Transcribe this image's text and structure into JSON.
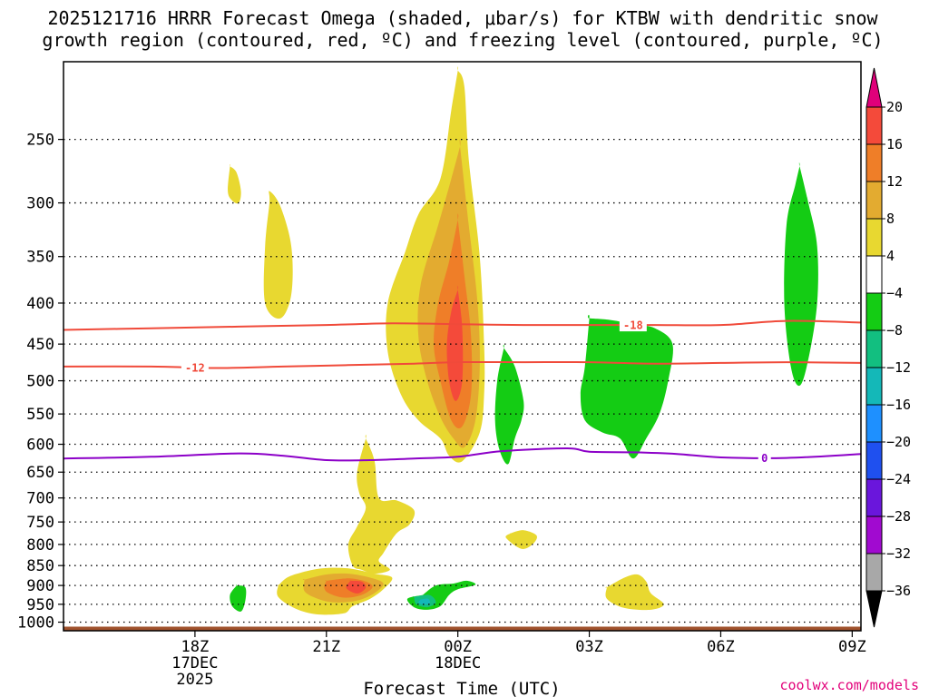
{
  "chart_data": {
    "type": "heatmap",
    "title_lines": [
      "2025121716 HRRR Forecast Omega (shaded, μbar/s) for KTBW with dendritic snow",
      "growth region (contoured, red, ºC) and freezing level (contoured, purple, ºC)"
    ],
    "xlabel": "Forecast Time (UTC)",
    "credit": "coolwx.com/models",
    "x_range_hours": [
      -3.0,
      15.2
    ],
    "y_range_hpa": [
      1025,
      200
    ],
    "y_ticks": [
      250,
      300,
      350,
      400,
      450,
      500,
      550,
      600,
      650,
      700,
      750,
      800,
      850,
      900,
      950,
      1000
    ],
    "x_ticks": [
      {
        "hour": 0,
        "lines": [
          "18Z",
          "17DEC",
          "2025"
        ]
      },
      {
        "hour": 3,
        "lines": [
          "21Z"
        ]
      },
      {
        "hour": 6,
        "lines": [
          "00Z",
          "18DEC"
        ]
      },
      {
        "hour": 9,
        "lines": [
          "03Z"
        ]
      },
      {
        "hour": 12,
        "lines": [
          "06Z"
        ]
      },
      {
        "hour": 15,
        "lines": [
          "09Z"
        ]
      }
    ],
    "ground_hpa": 1013,
    "colorbar": {
      "levels": [
        20,
        16,
        12,
        8,
        4,
        -4,
        -8,
        -12,
        -16,
        -20,
        -24,
        -28,
        -32,
        -36
      ],
      "colors": [
        "#ff2d55",
        "#f44a3a",
        "#ef7e28",
        "#e3ab30",
        "#e8d830",
        "#ffffff",
        "#14cc14",
        "#12bf80",
        "#14b8b8",
        "#1e90ff",
        "#1f50ef",
        "#6a16dc",
        "#a10ad0",
        "#a8a8a8",
        "#000000"
      ],
      "top_arrow_color": "#e0007a",
      "bottom_arrow_color": "#000000"
    },
    "contours": [
      {
        "name": "dendritic-minus18",
        "color": "#f04a3a",
        "label": "-18",
        "label_hour": 10.0,
        "points": [
          [
            -3.0,
            432
          ],
          [
            -1.0,
            430
          ],
          [
            1.0,
            428
          ],
          [
            3.0,
            426
          ],
          [
            4.5,
            424
          ],
          [
            6.0,
            425
          ],
          [
            7.5,
            426
          ],
          [
            9.0,
            426
          ],
          [
            10.5,
            426
          ],
          [
            12.0,
            426
          ],
          [
            13.5,
            421
          ],
          [
            15.2,
            423
          ]
        ]
      },
      {
        "name": "dendritic-minus12",
        "color": "#f04a3a",
        "label": "-12",
        "label_hour": 0.0,
        "points": [
          [
            -3.0,
            480
          ],
          [
            -1.0,
            480
          ],
          [
            0.5,
            482
          ],
          [
            2.0,
            480
          ],
          [
            3.5,
            478
          ],
          [
            5.0,
            476
          ],
          [
            6.0,
            474
          ],
          [
            7.5,
            474
          ],
          [
            9.0,
            474
          ],
          [
            10.5,
            476
          ],
          [
            12.0,
            475
          ],
          [
            13.5,
            474
          ],
          [
            15.2,
            475
          ]
        ]
      },
      {
        "name": "freezing-level-0",
        "color": "#8c00c8",
        "label": "0",
        "label_hour": 13.0,
        "points": [
          [
            -3.0,
            625
          ],
          [
            -1.0,
            622
          ],
          [
            1.0,
            616
          ],
          [
            2.0,
            620
          ],
          [
            3.0,
            628
          ],
          [
            4.0,
            628
          ],
          [
            5.0,
            625
          ],
          [
            6.0,
            622
          ],
          [
            7.0,
            612
          ],
          [
            8.5,
            607
          ],
          [
            9.0,
            613
          ],
          [
            10.0,
            614
          ],
          [
            11.0,
            617
          ],
          [
            12.0,
            623
          ],
          [
            13.5,
            624
          ],
          [
            15.2,
            617
          ]
        ]
      }
    ],
    "shaded_regions": [
      {
        "name": "omega-4-left-upper",
        "color": "#e8d830",
        "points": [
          [
            1.7,
            290
          ],
          [
            1.95,
            303
          ],
          [
            2.2,
            340
          ],
          [
            2.2,
            390
          ],
          [
            1.95,
            418
          ],
          [
            1.6,
            400
          ],
          [
            1.6,
            340
          ],
          [
            1.7,
            300
          ]
        ]
      },
      {
        "name": "omega-4-main",
        "color": "#e8d830",
        "points": [
          [
            6.0,
            205
          ],
          [
            6.15,
            215
          ],
          [
            6.25,
            265
          ],
          [
            6.5,
            350
          ],
          [
            6.6,
            450
          ],
          [
            6.6,
            520
          ],
          [
            6.5,
            580
          ],
          [
            6.1,
            630
          ],
          [
            5.8,
            620
          ],
          [
            5.6,
            590
          ],
          [
            5.1,
            560
          ],
          [
            4.7,
            520
          ],
          [
            4.4,
            460
          ],
          [
            4.4,
            400
          ],
          [
            4.8,
            345
          ],
          [
            5.1,
            310
          ],
          [
            5.6,
            280
          ],
          [
            5.85,
            230
          ],
          [
            6.0,
            205
          ]
        ]
      },
      {
        "name": "omega-8-main",
        "color": "#e3ab30",
        "points": [
          [
            6.05,
            255
          ],
          [
            6.25,
            320
          ],
          [
            6.45,
            400
          ],
          [
            6.5,
            480
          ],
          [
            6.4,
            560
          ],
          [
            6.15,
            605
          ],
          [
            5.9,
            590
          ],
          [
            5.6,
            555
          ],
          [
            5.3,
            500
          ],
          [
            5.1,
            440
          ],
          [
            5.15,
            380
          ],
          [
            5.55,
            320
          ],
          [
            5.85,
            280
          ],
          [
            6.05,
            255
          ]
        ]
      },
      {
        "name": "omega-12-main",
        "color": "#ef7e28",
        "points": [
          [
            6.0,
            315
          ],
          [
            6.15,
            370
          ],
          [
            6.3,
            440
          ],
          [
            6.3,
            520
          ],
          [
            6.1,
            570
          ],
          [
            5.85,
            560
          ],
          [
            5.6,
            500
          ],
          [
            5.45,
            450
          ],
          [
            5.55,
            400
          ],
          [
            5.8,
            355
          ],
          [
            6.0,
            315
          ]
        ]
      },
      {
        "name": "omega-16-main",
        "color": "#f44a3a",
        "points": [
          [
            6.0,
            385
          ],
          [
            6.1,
            430
          ],
          [
            6.1,
            500
          ],
          [
            5.95,
            530
          ],
          [
            5.8,
            500
          ],
          [
            5.75,
            450
          ],
          [
            5.85,
            410
          ],
          [
            6.0,
            385
          ]
        ]
      },
      {
        "name": "omega-4-mid-chain",
        "color": "#e8d830",
        "points": [
          [
            3.9,
            590
          ],
          [
            4.1,
            630
          ],
          [
            4.2,
            700
          ],
          [
            4.6,
            705
          ],
          [
            5.0,
            725
          ],
          [
            4.9,
            755
          ],
          [
            4.6,
            775
          ],
          [
            4.3,
            820
          ],
          [
            4.2,
            840
          ],
          [
            4.45,
            860
          ],
          [
            4.1,
            870
          ],
          [
            3.8,
            860
          ],
          [
            3.6,
            850
          ],
          [
            3.5,
            800
          ],
          [
            3.7,
            760
          ],
          [
            3.9,
            720
          ],
          [
            3.75,
            690
          ],
          [
            3.7,
            650
          ],
          [
            3.9,
            590
          ]
        ]
      },
      {
        "name": "omega-4-low-blob",
        "color": "#e8d830",
        "points": [
          [
            1.9,
            900
          ],
          [
            2.1,
            880
          ],
          [
            2.4,
            868
          ],
          [
            2.9,
            857
          ],
          [
            3.5,
            857
          ],
          [
            4.1,
            870
          ],
          [
            4.5,
            880
          ],
          [
            4.3,
            910
          ],
          [
            4.0,
            935
          ],
          [
            3.6,
            955
          ],
          [
            3.4,
            975
          ],
          [
            2.8,
            978
          ],
          [
            2.3,
            962
          ],
          [
            1.9,
            930
          ],
          [
            1.9,
            900
          ]
        ]
      },
      {
        "name": "omega-8-low-blob",
        "color": "#e3ab30",
        "points": [
          [
            2.5,
            885
          ],
          [
            3.0,
            872
          ],
          [
            3.5,
            870
          ],
          [
            4.0,
            880
          ],
          [
            4.3,
            895
          ],
          [
            4.1,
            920
          ],
          [
            3.7,
            940
          ],
          [
            3.2,
            945
          ],
          [
            2.8,
            935
          ],
          [
            2.5,
            915
          ],
          [
            2.5,
            885
          ]
        ]
      },
      {
        "name": "omega-12-low-blob",
        "color": "#ef7e28",
        "points": [
          [
            3.0,
            888
          ],
          [
            3.5,
            882
          ],
          [
            3.9,
            890
          ],
          [
            4.05,
            905
          ],
          [
            3.8,
            925
          ],
          [
            3.4,
            932
          ],
          [
            3.05,
            920
          ],
          [
            2.95,
            905
          ],
          [
            3.0,
            888
          ]
        ]
      },
      {
        "name": "omega-16-low-blob",
        "color": "#f44a3a",
        "points": [
          [
            3.55,
            888
          ],
          [
            3.8,
            890
          ],
          [
            3.9,
            905
          ],
          [
            3.75,
            920
          ],
          [
            3.6,
            918
          ],
          [
            3.45,
            905
          ],
          [
            3.55,
            888
          ]
        ]
      },
      {
        "name": "omega-4-small-upper",
        "color": "#e8d830",
        "points": [
          [
            0.8,
            270
          ],
          [
            0.95,
            275
          ],
          [
            1.05,
            290
          ],
          [
            1.0,
            300
          ],
          [
            0.85,
            298
          ],
          [
            0.75,
            290
          ],
          [
            0.8,
            270
          ]
        ]
      },
      {
        "name": "omega-4-mid-small",
        "color": "#e8d830",
        "points": [
          [
            7.2,
            775
          ],
          [
            7.5,
            768
          ],
          [
            7.8,
            780
          ],
          [
            7.7,
            800
          ],
          [
            7.45,
            810
          ],
          [
            7.1,
            785
          ],
          [
            7.2,
            775
          ]
        ]
      },
      {
        "name": "omega-4-right-low",
        "color": "#e8d830",
        "points": [
          [
            9.4,
            905
          ],
          [
            9.8,
            880
          ],
          [
            10.1,
            872
          ],
          [
            10.3,
            890
          ],
          [
            10.4,
            920
          ],
          [
            10.7,
            950
          ],
          [
            10.4,
            965
          ],
          [
            9.8,
            960
          ],
          [
            9.4,
            935
          ],
          [
            9.4,
            905
          ]
        ]
      },
      {
        "name": "omega-minus4-right-tall",
        "color": "#14cc14",
        "points": [
          [
            13.8,
            270
          ],
          [
            14.0,
            300
          ],
          [
            14.2,
            340
          ],
          [
            14.2,
            400
          ],
          [
            14.0,
            470
          ],
          [
            13.8,
            507
          ],
          [
            13.6,
            480
          ],
          [
            13.45,
            400
          ],
          [
            13.5,
            320
          ],
          [
            13.7,
            285
          ],
          [
            13.8,
            270
          ]
        ]
      },
      {
        "name": "omega-minus4-mid-rect",
        "color": "#14cc14",
        "points": [
          [
            9.0,
            418
          ],
          [
            9.5,
            420
          ],
          [
            10.0,
            425
          ],
          [
            10.5,
            430
          ],
          [
            10.9,
            450
          ],
          [
            10.8,
            500
          ],
          [
            10.6,
            550
          ],
          [
            10.3,
            590
          ],
          [
            10.0,
            625
          ],
          [
            9.7,
            590
          ],
          [
            9.3,
            580
          ],
          [
            8.9,
            560
          ],
          [
            8.8,
            520
          ],
          [
            8.9,
            480
          ],
          [
            9.0,
            418
          ]
        ]
      },
      {
        "name": "omega-minus4-thin",
        "color": "#14cc14",
        "points": [
          [
            7.05,
            455
          ],
          [
            7.3,
            480
          ],
          [
            7.5,
            530
          ],
          [
            7.45,
            560
          ],
          [
            7.3,
            590
          ],
          [
            7.15,
            635
          ],
          [
            6.95,
            610
          ],
          [
            6.85,
            560
          ],
          [
            6.9,
            500
          ],
          [
            7.05,
            455
          ]
        ]
      },
      {
        "name": "omega-minus4-low",
        "color": "#14cc14",
        "points": [
          [
            5.2,
            925
          ],
          [
            5.5,
            900
          ],
          [
            5.9,
            895
          ],
          [
            6.2,
            888
          ],
          [
            6.4,
            898
          ],
          [
            6.0,
            910
          ],
          [
            5.8,
            925
          ],
          [
            5.6,
            955
          ],
          [
            5.3,
            965
          ],
          [
            5.0,
            958
          ],
          [
            4.85,
            935
          ],
          [
            5.2,
            925
          ]
        ]
      },
      {
        "name": "omega-minus8-low",
        "color": "#12bf80",
        "points": [
          [
            5.0,
            930
          ],
          [
            5.35,
            925
          ],
          [
            5.5,
            945
          ],
          [
            5.3,
            958
          ],
          [
            5.05,
            950
          ],
          [
            5.0,
            930
          ]
        ]
      },
      {
        "name": "omega-minus12-low",
        "color": "#14b8b8",
        "points": [
          [
            5.15,
            937
          ],
          [
            5.32,
            935
          ],
          [
            5.36,
            947
          ],
          [
            5.2,
            951
          ],
          [
            5.1,
            945
          ],
          [
            5.15,
            937
          ]
        ]
      },
      {
        "name": "omega-minus4-far-left",
        "color": "#14cc14",
        "points": [
          [
            0.95,
            900
          ],
          [
            1.15,
            905
          ],
          [
            1.15,
            940
          ],
          [
            1.05,
            970
          ],
          [
            0.85,
            955
          ],
          [
            0.8,
            925
          ],
          [
            0.95,
            900
          ]
        ]
      }
    ]
  }
}
